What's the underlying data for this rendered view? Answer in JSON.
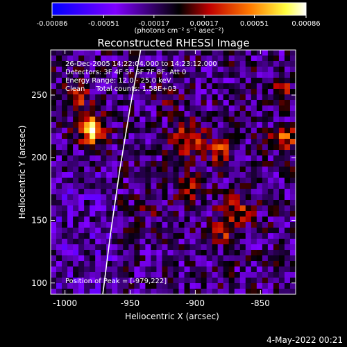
{
  "colorbar": {
    "tick_labels": [
      "-0.00086",
      "-0.00051",
      "-0.00017",
      "0.00017",
      "0.00051",
      "0.00086"
    ],
    "tick_values": [
      -0.00086,
      -0.00051,
      -0.00017,
      0.00017,
      0.00051,
      0.00086
    ],
    "range": [
      -0.00086,
      0.00086
    ],
    "units_label": "(photons cm⁻² s⁻¹ asec⁻²)",
    "colors": [
      "#0000ff",
      "#7f00ff",
      "#000000",
      "#c00000",
      "#ff7a00",
      "#ffff40",
      "#ffffff"
    ]
  },
  "chart_data": {
    "type": "heatmap",
    "title": "Reconstructed RHESSI Image",
    "xlabel": "Heliocentric X (arcsec)",
    "ylabel": "Heliocentric Y (arcsec)",
    "xlim": [
      -1011,
      -823
    ],
    "ylim": [
      91,
      286
    ],
    "x_ticks": [
      -1000,
      -950,
      -900,
      -850
    ],
    "y_ticks": [
      100,
      150,
      200,
      250
    ],
    "x_tick_labels": [
      "-1000",
      "-950",
      "-900",
      "-850"
    ],
    "y_tick_labels": [
      "100",
      "150",
      "200",
      "250"
    ],
    "annotations": [
      "26-Dec-2005 14:22:04.000 to 14:23:12.000",
      "Detectors: 3F 4F 5F 6F 7F 8F, Att 0",
      "Energy Range: 12.0 - 25.0 keV",
      "Clean     Total counts: 1.58E+03"
    ],
    "peak_label": "Position of Peak = [-979,222]",
    "peak_position": [
      -979,
      222
    ],
    "limb_curve": [
      [
        -971,
        91
      ],
      [
        -965,
        140
      ],
      [
        -958,
        190
      ],
      [
        -950,
        240
      ],
      [
        -942,
        286
      ]
    ],
    "colors": {
      "limb": "#ffffff",
      "frame": "#ffffff"
    }
  },
  "footer": {
    "date": "4-May-2022 00:21"
  }
}
